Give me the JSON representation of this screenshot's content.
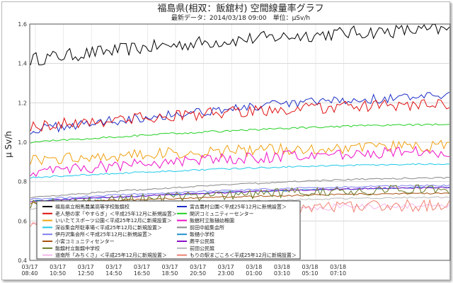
{
  "chart_data": {
    "type": "line",
    "title": "福島県(相双：飯舘村) 空間線量率グラフ",
    "subtitle": "最新データ：2014/03/18 09:00　単位：μSv/h",
    "ylabel": "μ Sv/h",
    "ylim": [
      0.4,
      1.6
    ],
    "yticks": [
      "0.4",
      "0.6",
      "0.8",
      "1.0",
      "1.2",
      "1.4",
      "1.6"
    ],
    "xticks": [
      {
        "d": "03/17",
        "t": "08:40"
      },
      {
        "d": "03/17",
        "t": "10:50"
      },
      {
        "d": "03/17",
        "t": "12:50"
      },
      {
        "d": "03/17",
        "t": "14:50"
      },
      {
        "d": "03/17",
        "t": "16:50"
      },
      {
        "d": "03/17",
        "t": "18:50"
      },
      {
        "d": "03/17",
        "t": "20:50"
      },
      {
        "d": "03/17",
        "t": "23:00"
      },
      {
        "d": "03/18",
        "t": "01:00"
      },
      {
        "d": "03/18",
        "t": "03:10"
      },
      {
        "d": "03/18",
        "t": "05:10"
      },
      {
        "d": "03/18",
        "t": "07:10"
      }
    ],
    "grid": true,
    "legend_placement": "bottom",
    "series": [
      {
        "name": "福島県立相馬農業高等学校飯舘校",
        "color": "#000000",
        "start": 1.42,
        "end": 1.57,
        "noise": 0.035
      },
      {
        "name": "宮古農村公園＜平成25年12月に新規設置＞",
        "color": "#1b2cc4",
        "start": 1.06,
        "end": 1.23,
        "noise": 0.025
      },
      {
        "name": "老人憩の家「やすらぎ」＜平成25年12月に新規設置＞",
        "color": "#e01010",
        "start": 1.08,
        "end": 1.19,
        "noise": 0.03
      },
      {
        "name": "関沢コミュニティーセンター",
        "color": "#22d022",
        "start": 1.0,
        "end": 1.09,
        "noise": 0.005
      },
      {
        "name": "いいたてスポーツ公園＜平成25年12月に新規設置＞",
        "color": "#f0a010",
        "start": 0.91,
        "end": 0.98,
        "noise": 0.03
      },
      {
        "name": "飯舘村立飯樋幼稚園",
        "color": "#ee10c8",
        "start": 0.85,
        "end": 0.95,
        "noise": 0.03
      },
      {
        "name": "深谷集会所駐車場＜平成25年12月に新規設置＞",
        "color": "#20c8e8",
        "start": 0.82,
        "end": 0.89,
        "noise": 0.004
      },
      {
        "name": "前田中組集会所",
        "color": "#888888",
        "start": 0.72,
        "end": 0.82,
        "noise": 0.004
      },
      {
        "name": "伊丹沢集会所＜平成25年12月に新規設置＞",
        "color": "#8080ee",
        "start": 0.71,
        "end": 0.78,
        "noise": 0.004
      },
      {
        "name": "飯樋小学校",
        "color": "#2090d0",
        "start": 0.7,
        "end": 0.77,
        "noise": 0.004
      },
      {
        "name": "小宮コミュニティセンター",
        "color": "#a85010",
        "start": 0.69,
        "end": 0.74,
        "noise": 0.004
      },
      {
        "name": "蕨平公民館",
        "color": "#8a10c8",
        "start": 0.7,
        "end": 0.77,
        "noise": 0.004
      },
      {
        "name": "飯舘村立飯舘中学校",
        "color": "#6a7a28",
        "start": 0.68,
        "end": 0.76,
        "noise": 0.025
      },
      {
        "name": "前田公民館",
        "color": "#b8b8b8",
        "start": 0.66,
        "end": 0.72,
        "noise": 0.004
      },
      {
        "name": "道南所「みちくさ」＜平成25年12月に新規設置＞",
        "color": "#f4b8e8",
        "start": 0.6,
        "end": 0.68,
        "noise": 0.015
      },
      {
        "name": "もりの駅まごころ＜平成25年12月に新規設置＞",
        "color": "#f08070",
        "start": 0.59,
        "end": 0.68,
        "noise": 0.03
      }
    ]
  }
}
